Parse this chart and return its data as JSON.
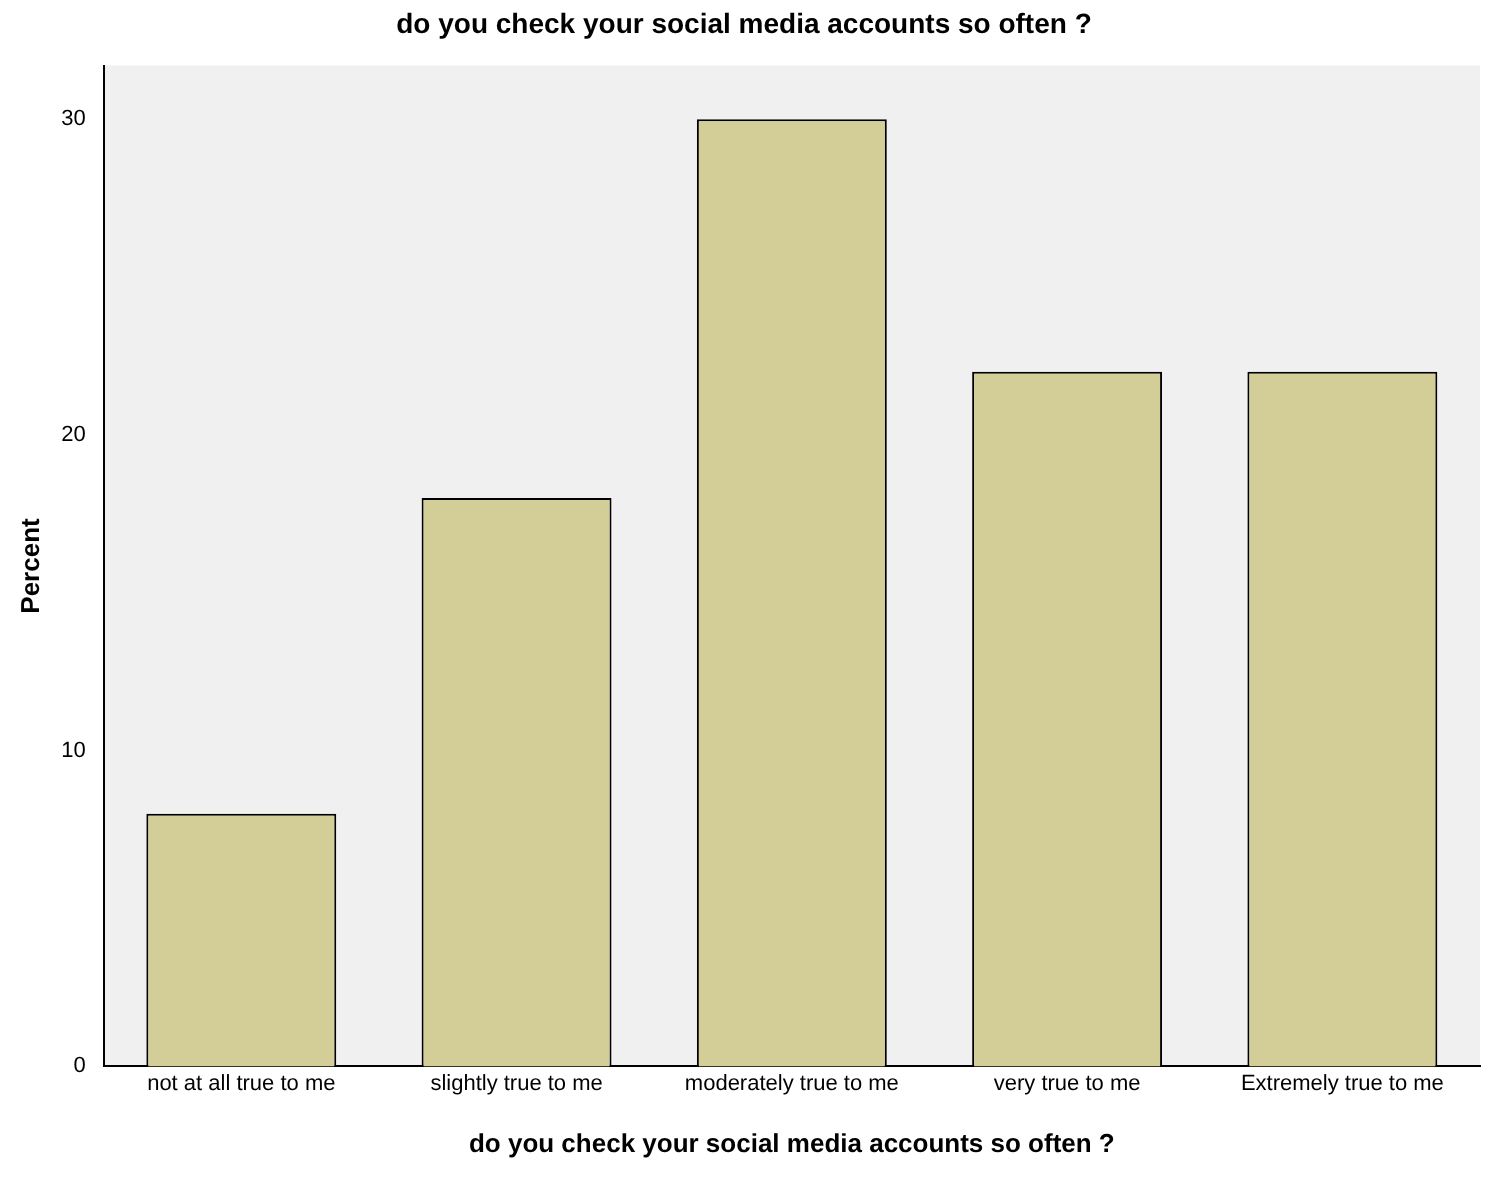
{
  "chart_data": {
    "type": "bar",
    "title": "do you check your social media accounts so often ?",
    "xlabel": "do you check your social media accounts so often ?",
    "ylabel": "Percent",
    "categories": [
      "not at all true to me",
      "slightly true to me",
      "moderately true to me",
      "very true to me",
      "Extremely true to me"
    ],
    "values": [
      8,
      18,
      30,
      22,
      22
    ],
    "color": "#d3ce97",
    "ylim": [
      0,
      31.7
    ],
    "yticks": [
      0,
      10,
      20,
      30
    ],
    "grid": false,
    "legend": false
  }
}
